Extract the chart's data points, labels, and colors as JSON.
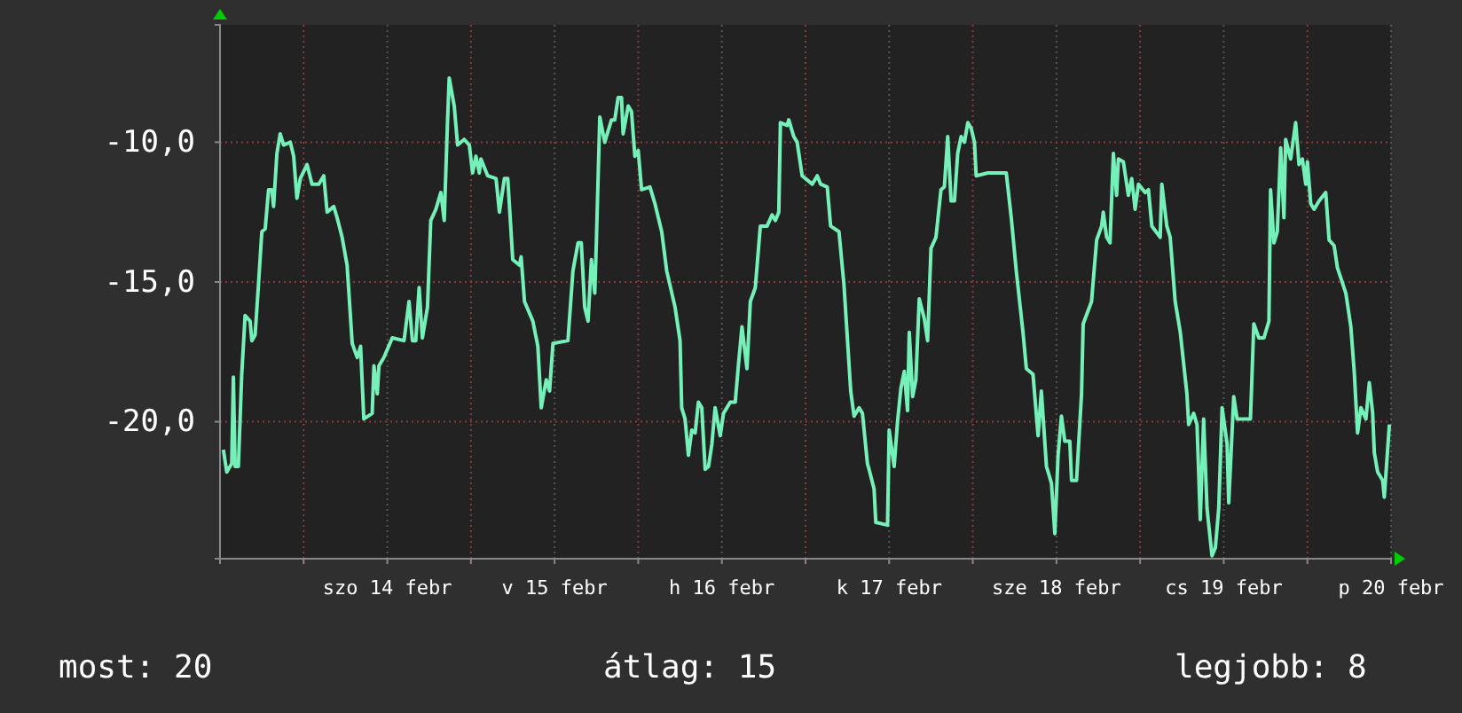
{
  "chart_data": {
    "type": "line",
    "xlim": [
      "--02-13T12:00",
      "--02-20T12:00"
    ],
    "ylim": [
      -24.9,
      -5.8
    ],
    "xticks": [
      {
        "value": "--02-14T00:00",
        "label": null
      },
      {
        "value": "--02-14T12:00",
        "label": "szo 14 febr"
      },
      {
        "value": "--02-15T00:00",
        "label": null
      },
      {
        "value": "--02-15T12:00",
        "label": "v 15 febr"
      },
      {
        "value": "--02-16T00:00",
        "label": null
      },
      {
        "value": "--02-16T12:00",
        "label": "h 16 febr"
      },
      {
        "value": "--02-17T00:00",
        "label": null
      },
      {
        "value": "--02-17T12:00",
        "label": "k 17 febr"
      },
      {
        "value": "--02-18T00:00",
        "label": null
      },
      {
        "value": "--02-18T12:00",
        "label": "sze 18 febr"
      },
      {
        "value": "--02-19T00:00",
        "label": null
      },
      {
        "value": "--02-19T12:00",
        "label": "cs 19 febr"
      },
      {
        "value": "--02-20T00:00",
        "label": null
      },
      {
        "value": "--02-20T12:00",
        "label": "p 20 febr"
      }
    ],
    "yticks": [
      {
        "value": -10,
        "label": "-10,0"
      },
      {
        "value": -15,
        "label": "-15,0"
      },
      {
        "value": -20,
        "label": "-20,0"
      }
    ],
    "grid": true,
    "line_style": "solid",
    "annotations": [
      "most: 20",
      "átlag: 15",
      "legjobb: 8"
    ],
    "series": [
      {
        "color": "#74f0b8",
        "x": [
          "--02-13T12:29",
          "--02-13T12:58",
          "--02-13T13:41",
          "--02-13T13:55",
          "--02-13T14:10",
          "--02-13T14:38",
          "--02-13T15:07",
          "--02-13T15:36",
          "--02-13T16:19",
          "--02-13T16:34",
          "--02-13T17:02",
          "--02-13T17:31",
          "--02-13T18:00",
          "--02-13T18:29",
          "--02-13T18:58",
          "--02-13T19:26",
          "--02-13T19:41",
          "--02-13T20:10",
          "--02-13T20:38",
          "--02-13T21:07",
          "--02-13T22:05",
          "--02-13T22:34",
          "--02-13T23:02",
          "--02-13T23:31",
          "--02-14T00:29",
          "--02-14T01:12",
          "--02-14T02:10",
          "--02-14T02:53",
          "--02-14T03:22",
          "--02-14T04:19",
          "--02-14T04:48",
          "--02-14T05:31",
          "--02-14T06:14",
          "--02-14T06:58",
          "--02-14T07:41",
          "--02-14T08:10",
          "--02-14T08:38",
          "--02-14T09:50",
          "--02-14T10:05",
          "--02-14T10:34",
          "--02-14T10:48",
          "--02-14T11:31",
          "--02-14T12:43",
          "--02-14T14:24",
          "--02-14T15:07",
          "--02-14T15:36",
          "--02-14T16:05",
          "--02-14T16:34",
          "--02-14T17:02",
          "--02-14T17:46",
          "--02-14T18:14",
          "--02-14T18:58",
          "--02-14T19:41",
          "--02-14T20:10",
          "--02-14T20:38",
          "--02-14T20:53",
          "--02-14T21:36",
          "--02-14T22:05",
          "--02-14T23:02",
          "--02-14T23:46",
          "--02-15T00:14",
          "--02-15T00:43",
          "--02-15T01:12",
          "--02-15T01:26",
          "--02-15T02:24",
          "--02-15T03:36",
          "--02-15T04:05",
          "--02-15T04:48",
          "--02-15T05:17",
          "--02-15T06:00",
          "--02-15T06:58",
          "--02-15T07:12",
          "--02-15T07:41",
          "--02-15T08:53",
          "--02-15T09:36",
          "--02-15T10:05",
          "--02-15T10:48",
          "--02-15T11:17",
          "--02-15T11:46",
          "--02-15T13:55",
          "--02-15T14:38",
          "--02-15T15:22",
          "--02-15T15:50",
          "--02-15T16:19",
          "--02-15T16:48",
          "--02-15T17:17",
          "--02-15T17:46",
          "--02-15T18:00",
          "--02-15T18:29",
          "--02-15T19:12",
          "--02-15T19:26",
          "--02-15T20:10",
          "--02-15T20:38",
          "--02-15T21:07",
          "--02-15T21:36",
          "--02-15T21:50",
          "--02-15T22:34",
          "--02-15T23:02",
          "--02-15T23:31",
          "--02-16T00:00",
          "--02-16T00:29",
          "--02-16T01:41",
          "--02-16T02:24",
          "--02-16T03:22",
          "--02-16T04:05",
          "--02-16T05:17",
          "--02-16T06:00",
          "--02-16T06:14",
          "--02-16T06:43",
          "--02-16T07:12",
          "--02-16T07:41",
          "--02-16T08:10",
          "--02-16T08:38",
          "--02-16T09:07",
          "--02-16T09:36",
          "--02-16T10:05",
          "--02-16T10:34",
          "--02-16T11:02",
          "--02-16T11:46",
          "--02-16T12:14",
          "--02-16T13:12",
          "--02-16T13:55",
          "--02-16T14:24",
          "--02-16T14:53",
          "--02-16T15:36",
          "--02-16T16:05",
          "--02-16T16:48",
          "--02-16T17:31",
          "--02-16T18:29",
          "--02-16T19:12",
          "--02-16T19:41",
          "--02-16T20:10",
          "--02-16T20:24",
          "--02-16T21:22",
          "--02-16T21:36",
          "--02-16T22:19",
          "--02-16T22:48",
          "--02-16T23:31",
          "--02-17T00:58",
          "--02-17T01:41",
          "--02-17T02:10",
          "--02-17T03:07",
          "--02-17T03:36",
          "--02-17T04:48",
          "--02-17T05:31",
          "--02-17T06:00",
          "--02-17T06:29",
          "--02-17T06:58",
          "--02-17T07:41",
          "--02-17T08:10",
          "--02-17T08:53",
          "--02-17T09:07",
          "--02-17T09:50",
          "--02-17T10:05",
          "--02-17T11:46",
          "--02-17T12:00",
          "--02-17T12:43",
          "--02-17T13:12",
          "--02-17T13:41",
          "--02-17T14:10",
          "--02-17T14:38",
          "--02-17T14:53",
          "--02-17T15:22",
          "--02-17T15:50",
          "--02-17T16:19",
          "--02-17T17:02",
          "--02-17T17:31",
          "--02-17T18:00",
          "--02-17T18:43",
          "--02-17T19:26",
          "--02-17T19:55",
          "--02-17T20:24",
          "--02-17T20:53",
          "--02-17T21:22",
          "--02-17T21:50",
          "--02-17T22:19",
          "--02-17T22:48",
          "--02-17T23:17",
          "--02-17T23:46",
          "--02-18T00:14",
          "--02-18T00:29",
          "--02-18T02:10",
          "--02-18T02:53",
          "--02-18T04:48",
          "--02-18T05:31",
          "--02-18T06:14",
          "--02-18T07:12",
          "--02-18T07:41",
          "--02-18T08:38",
          "--02-18T09:22",
          "--02-18T09:50",
          "--02-18T10:34",
          "--02-18T11:17",
          "--02-18T11:46",
          "--02-18T12:14",
          "--02-18T12:43",
          "--02-18T13:12",
          "--02-18T13:55",
          "--02-18T14:10",
          "--02-18T14:53",
          "--02-18T15:36",
          "--02-18T15:50",
          "--02-18T17:02",
          "--02-18T17:46",
          "--02-18T18:29",
          "--02-18T18:43",
          "--02-18T19:12",
          "--02-18T19:41",
          "--02-18T20:10",
          "--02-18T20:38",
          "--02-18T20:53",
          "--02-18T21:36",
          "--02-18T22:19",
          "--02-18T22:48",
          "--02-18T23:17",
          "--02-18T23:46",
          "--02-19T00:43",
          "--02-19T01:12",
          "--02-19T01:41",
          "--02-19T02:53",
          "--02-19T03:07",
          "--02-19T03:50",
          "--02-19T04:19",
          "--02-19T05:02",
          "--02-19T05:46",
          "--02-19T06:43",
          "--02-19T06:58",
          "--02-19T07:41",
          "--02-19T08:10",
          "--02-19T08:38",
          "--02-19T09:07",
          "--02-19T09:36",
          "--02-19T10:19",
          "--02-19T10:48",
          "--02-19T11:17",
          "--02-19T11:46",
          "--02-19T12:29",
          "--02-19T12:43",
          "--02-19T13:26",
          "--02-19T13:55",
          "--02-19T15:50",
          "--02-19T16:19",
          "--02-19T17:02",
          "--02-19T17:46",
          "--02-19T18:29",
          "--02-19T18:43",
          "--02-19T19:12",
          "--02-19T19:41",
          "--02-19T20:10",
          "--02-19T20:38",
          "--02-19T20:53",
          "--02-19T21:36",
          "--02-19T22:19",
          "--02-19T22:48",
          "--02-19T23:17",
          "--02-19T23:46",
          "--02-20T00:00",
          "--02-20T00:29",
          "--02-20T00:58",
          "--02-20T01:41",
          "--02-20T02:38",
          "--02-20T03:07",
          "--02-20T03:50",
          "--02-20T04:19",
          "--02-20T05:31",
          "--02-20T06:14",
          "--02-20T06:43",
          "--02-20T07:12",
          "--02-20T07:41",
          "--02-20T08:24",
          "--02-20T08:53",
          "--02-20T09:22",
          "--02-20T09:36",
          "--02-20T10:05",
          "--02-20T10:48",
          "--02-20T11:02",
          "--02-20T11:46"
        ],
        "values": [
          -21.0,
          -21.8,
          -21.5,
          -18.4,
          -21.6,
          -21.6,
          -18.3,
          -16.2,
          -16.4,
          -17.1,
          -16.9,
          -15.1,
          -13.2,
          -13.1,
          -11.7,
          -11.7,
          -12.3,
          -10.4,
          -9.7,
          -10.1,
          -10.0,
          -10.5,
          -12.0,
          -11.3,
          -10.8,
          -11.5,
          -11.5,
          -11.2,
          -12.5,
          -12.3,
          -12.7,
          -13.4,
          -14.4,
          -17.2,
          -17.7,
          -17.3,
          -19.9,
          -19.7,
          -18.0,
          -19.0,
          -18.0,
          -17.7,
          -17.0,
          -17.1,
          -15.7,
          -17.1,
          -17.1,
          -15.2,
          -17.0,
          -15.9,
          -12.8,
          -12.4,
          -11.8,
          -12.8,
          -9.3,
          -7.7,
          -8.7,
          -10.1,
          -9.9,
          -10.1,
          -11.1,
          -10.5,
          -11.1,
          -10.6,
          -11.2,
          -11.3,
          -12.5,
          -11.3,
          -11.3,
          -14.2,
          -14.4,
          -14.1,
          -15.7,
          -16.4,
          -17.3,
          -19.5,
          -18.5,
          -18.9,
          -17.2,
          -17.1,
          -14.6,
          -13.6,
          -13.6,
          -15.9,
          -16.4,
          -14.2,
          -15.4,
          -13.5,
          -9.1,
          -10.0,
          -9.8,
          -9.2,
          -9.2,
          -8.4,
          -8.4,
          -9.7,
          -8.7,
          -8.9,
          -10.5,
          -10.3,
          -11.7,
          -11.6,
          -12.2,
          -13.2,
          -14.6,
          -15.9,
          -17.1,
          -19.5,
          -19.9,
          -21.2,
          -20.3,
          -20.4,
          -19.3,
          -19.5,
          -21.7,
          -21.6,
          -20.8,
          -19.5,
          -20.5,
          -19.7,
          -19.3,
          -19.3,
          -17.9,
          -16.6,
          -18.1,
          -15.7,
          -15.2,
          -13.0,
          -13.0,
          -12.6,
          -12.8,
          -12.5,
          -9.3,
          -9.4,
          -9.2,
          -9.8,
          -10.0,
          -11.2,
          -11.5,
          -11.2,
          -11.5,
          -11.6,
          -13.0,
          -13.2,
          -15.1,
          -17.0,
          -18.9,
          -19.8,
          -19.5,
          -19.7,
          -21.5,
          -21.7,
          -22.4,
          -23.6,
          -23.7,
          -20.3,
          -21.6,
          -20.0,
          -18.8,
          -18.2,
          -19.6,
          -16.8,
          -19.1,
          -18.5,
          -15.6,
          -16.3,
          -17.1,
          -13.8,
          -13.4,
          -11.7,
          -11.6,
          -9.8,
          -12.1,
          -12.1,
          -10.4,
          -9.8,
          -10.0,
          -9.3,
          -9.5,
          -10.0,
          -11.2,
          -11.1,
          -11.1,
          -11.1,
          -12.7,
          -14.6,
          -16.8,
          -18.1,
          -18.3,
          -20.5,
          -18.9,
          -21.6,
          -22.2,
          -24.0,
          -21.2,
          -19.8,
          -20.7,
          -20.7,
          -22.1,
          -22.1,
          -19.0,
          -16.5,
          -15.7,
          -13.5,
          -13.0,
          -12.5,
          -13.4,
          -13.6,
          -10.4,
          -11.9,
          -10.6,
          -10.7,
          -11.9,
          -11.3,
          -12.4,
          -11.5,
          -11.8,
          -11.7,
          -13.0,
          -13.4,
          -11.5,
          -13.0,
          -13.4,
          -15.7,
          -16.8,
          -19.0,
          -20.1,
          -19.7,
          -20.1,
          -23.5,
          -19.9,
          -23.1,
          -24.8,
          -24.5,
          -23.1,
          -19.5,
          -20.8,
          -22.9,
          -19.1,
          -19.9,
          -19.9,
          -16.5,
          -17.0,
          -17.0,
          -16.4,
          -11.7,
          -13.6,
          -13.2,
          -10.2,
          -12.7,
          -9.9,
          -10.6,
          -9.3,
          -10.8,
          -10.6,
          -11.5,
          -10.7,
          -12.2,
          -12.4,
          -12.1,
          -11.8,
          -13.5,
          -13.7,
          -14.5,
          -15.4,
          -16.6,
          -18.2,
          -20.4,
          -19.5,
          -19.9,
          -18.6,
          -19.7,
          -21.1,
          -21.8,
          -22.1,
          -22.7,
          -20.1
        ]
      }
    ]
  }
}
